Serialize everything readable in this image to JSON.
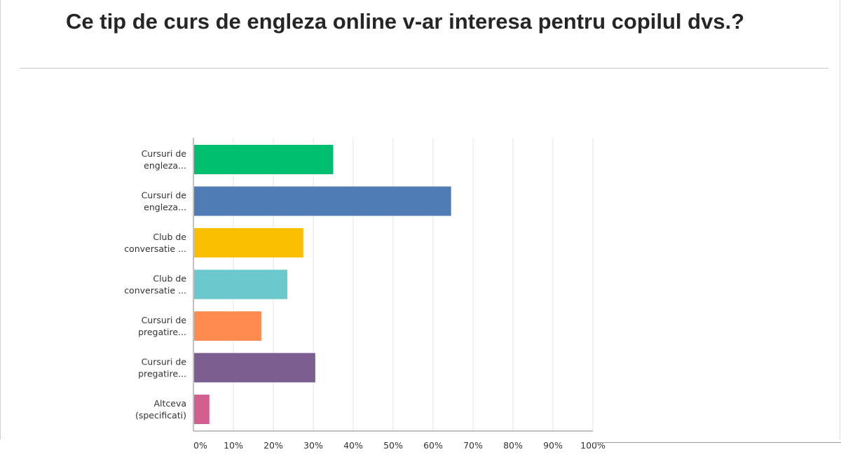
{
  "slide": {
    "title": "Ce tip de curs de engleza online v-ar interesa pentru copilul dvs.?"
  },
  "chart_data": {
    "type": "bar",
    "orientation": "horizontal",
    "title": "Ce tip de curs de engleza online v-ar interesa pentru copilul dvs.?",
    "xlabel": "",
    "ylabel": "",
    "xlim": [
      0,
      100
    ],
    "grid": true,
    "legend": "none",
    "categories": [
      [
        "Cursuri de",
        "engleza..."
      ],
      [
        "Cursuri de",
        "engleza..."
      ],
      [
        "Club de",
        "conversatie ..."
      ],
      [
        "Club de",
        "conversatie ..."
      ],
      [
        "Cursuri de",
        "pregatire..."
      ],
      [
        "Cursuri de",
        "pregatire..."
      ],
      [
        "Altceva",
        "(specificati)"
      ]
    ],
    "values": [
      35,
      64.5,
      27.5,
      23.5,
      17,
      30.5,
      4
    ],
    "colors": [
      "#00bf6f",
      "#507cb6",
      "#f9be00",
      "#6bc8cd",
      "#ff8b4f",
      "#7d5e90",
      "#d25f90"
    ],
    "ticks": [
      0,
      10,
      20,
      30,
      40,
      50,
      60,
      70,
      80,
      90,
      100
    ],
    "tick_labels": [
      "0%",
      "10%",
      "20%",
      "30%",
      "40%",
      "50%",
      "60%",
      "70%",
      "80%",
      "90%",
      "100%"
    ]
  }
}
